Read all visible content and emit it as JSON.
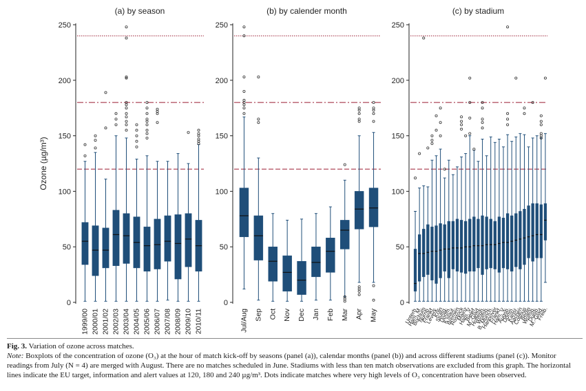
{
  "chart_data": [
    {
      "type": "box",
      "title": "(a) by season",
      "ylabel": "Ozone (µg/m³)",
      "ylim": [
        0,
        250
      ],
      "yticks": [
        0,
        50,
        100,
        150,
        200,
        250
      ],
      "reference_lines": [
        120,
        180,
        240
      ],
      "categories": [
        "1999/00",
        "2000/01",
        "2001/02",
        "2002/03",
        "2003/04",
        "2004/05",
        "2005/06",
        "2006/07",
        "2007/08",
        "2008/09",
        "2009/10",
        "2010/11"
      ],
      "boxes": [
        {
          "min": 1,
          "q1": 34,
          "median": 55,
          "q3": 72,
          "max": 127,
          "outliers": [
            132,
            142
          ]
        },
        {
          "min": 1,
          "q1": 24,
          "median": 47,
          "q3": 69,
          "max": 135,
          "outliers": [
            139,
            146,
            150
          ]
        },
        {
          "min": 1,
          "q1": 31,
          "median": 47,
          "q3": 67,
          "max": 111,
          "outliers": [
            157,
            189
          ]
        },
        {
          "min": 1,
          "q1": 33,
          "median": 61,
          "q3": 83,
          "max": 150,
          "outliers": [
            160,
            165,
            170
          ]
        },
        {
          "min": 1,
          "q1": 35,
          "median": 60,
          "q3": 80,
          "max": 148,
          "outliers": [
            155,
            160,
            163,
            167,
            170,
            175,
            178,
            180,
            202,
            203,
            238,
            248
          ]
        },
        {
          "min": 1,
          "q1": 31,
          "median": 54,
          "q3": 77,
          "max": 129,
          "outliers": [
            140,
            145,
            150,
            155,
            160
          ]
        },
        {
          "min": 1,
          "q1": 28,
          "median": 51,
          "q3": 68,
          "max": 132,
          "outliers": [
            148,
            152,
            155,
            160,
            163,
            165,
            170,
            175,
            180
          ]
        },
        {
          "min": 1,
          "q1": 30,
          "median": 52,
          "q3": 75,
          "max": 127,
          "outliers": [
            162,
            170,
            172,
            174
          ]
        },
        {
          "min": 2,
          "q1": 37,
          "median": 55,
          "q3": 78,
          "max": 127,
          "outliers": []
        },
        {
          "min": 1,
          "q1": 21,
          "median": 53,
          "q3": 79,
          "max": 134,
          "outliers": []
        },
        {
          "min": 1,
          "q1": 32,
          "median": 57,
          "q3": 80,
          "max": 125,
          "outliers": [
            153
          ]
        },
        {
          "min": 1,
          "q1": 28,
          "median": 51,
          "q3": 74,
          "max": 142,
          "outliers": [
            143,
            145,
            147,
            150,
            152,
            155
          ]
        }
      ]
    },
    {
      "type": "box",
      "title": "(b) by calender month",
      "ylim": [
        0,
        250
      ],
      "yticks": [
        0,
        50,
        100,
        150,
        200,
        250
      ],
      "reference_lines": [
        120,
        180,
        240
      ],
      "categories": [
        "Jul/Aug",
        "Sep",
        "Oct",
        "Nov",
        "Dec",
        "Jan",
        "Feb",
        "Mar",
        "Apr",
        "May"
      ],
      "boxes": [
        {
          "min": 12,
          "q1": 59,
          "median": 78,
          "q3": 103,
          "max": 167,
          "outliers": [
            170,
            175,
            178,
            180,
            182,
            190,
            203,
            240,
            248
          ]
        },
        {
          "min": 2,
          "q1": 38,
          "median": 60,
          "q3": 78,
          "max": 130,
          "outliers": [
            162,
            165,
            203
          ]
        },
        {
          "min": 1,
          "q1": 19,
          "median": 37,
          "q3": 50,
          "max": 80,
          "outliers": []
        },
        {
          "min": 1,
          "q1": 10,
          "median": 27,
          "q3": 42,
          "max": 74,
          "outliers": []
        },
        {
          "min": 1,
          "q1": 7,
          "median": 20,
          "q3": 37,
          "max": 75,
          "outliers": []
        },
        {
          "min": 2,
          "q1": 23,
          "median": 36,
          "q3": 50,
          "max": 80,
          "outliers": []
        },
        {
          "min": 2,
          "q1": 27,
          "median": 46,
          "q3": 58,
          "max": 86,
          "outliers": []
        },
        {
          "min": 5,
          "q1": 48,
          "median": 65,
          "q3": 74,
          "max": 110,
          "outliers": [
            1,
            3,
            5,
            124
          ]
        },
        {
          "min": 18,
          "q1": 66,
          "median": 84,
          "q3": 100,
          "max": 150,
          "outliers": [
            7,
            10,
            12,
            14,
            163,
            165,
            170,
            173,
            175
          ]
        },
        {
          "min": 18,
          "q1": 68,
          "median": 85,
          "q3": 103,
          "max": 153,
          "outliers": [
            2,
            15,
            163,
            170,
            173,
            175,
            180
          ]
        }
      ]
    },
    {
      "type": "box",
      "title": "(c) by stadium",
      "ylim": [
        0,
        250
      ],
      "yticks": [
        0,
        50,
        100,
        150,
        200,
        250
      ],
      "reference_lines": [
        120,
        180,
        240
      ],
      "categories": [
        "Unterh.",
        "Ham. M.",
        "Bochum",
        "Nürnb.",
        "Frankf.",
        "Leverk.",
        "Köln",
        "Stuttg.",
        "Dortm.",
        "K'slaut.",
        "Bremen",
        "Rostock",
        "Mainz",
        "Ham. V.",
        "Bielef.",
        "M.-Glad.",
        "Hoffenh.",
        "Wolfsb.",
        "B. Münch.",
        "Hannover",
        "Frankf.",
        "Ham. V.",
        "Augsb.",
        "Dortm.",
        "Karlsr.",
        "Aachen",
        "Cottbus",
        "Berlin",
        "Wolfsb.",
        "Duisb.",
        "M.-Glad.",
        "Freib."
      ],
      "boxes": [
        {
          "min": 1,
          "q1": 10,
          "median": 17,
          "q3": 48,
          "max": 82,
          "outliers": [
            112
          ]
        },
        {
          "min": 1,
          "q1": 19,
          "median": 44,
          "q3": 61,
          "max": 103,
          "outliers": [
            134
          ]
        },
        {
          "min": 1,
          "q1": 23,
          "median": 44,
          "q3": 66,
          "max": 105,
          "outliers": [
            238
          ]
        },
        {
          "min": 1,
          "q1": 25,
          "median": 45,
          "q3": 70,
          "max": 104,
          "outliers": [
            139
          ]
        },
        {
          "min": 1,
          "q1": 20,
          "median": 46,
          "q3": 68,
          "max": 128,
          "outliers": [
            143,
            146,
            150
          ]
        },
        {
          "min": 1,
          "q1": 17,
          "median": 46,
          "q3": 69,
          "max": 132,
          "outliers": [
            155,
            168
          ]
        },
        {
          "min": 1,
          "q1": 22,
          "median": 47,
          "q3": 71,
          "max": 138,
          "outliers": [
            150,
            162,
            175
          ]
        },
        {
          "min": 1,
          "q1": 28,
          "median": 48,
          "q3": 70,
          "max": 112,
          "outliers": [
            120
          ]
        },
        {
          "min": 1,
          "q1": 22,
          "median": 48,
          "q3": 73,
          "max": 128,
          "outliers": []
        },
        {
          "min": 1,
          "q1": 30,
          "median": 49,
          "q3": 73,
          "max": 115,
          "outliers": []
        },
        {
          "min": 1,
          "q1": 28,
          "median": 49,
          "q3": 75,
          "max": 122,
          "outliers": []
        },
        {
          "min": 1,
          "q1": 27,
          "median": 49,
          "q3": 74,
          "max": 131,
          "outliers": [
            156,
            160,
            163,
            167
          ]
        },
        {
          "min": 1,
          "q1": 26,
          "median": 50,
          "q3": 73,
          "max": 134,
          "outliers": [
            150
          ]
        },
        {
          "min": 1,
          "q1": 28,
          "median": 50,
          "q3": 75,
          "max": 150,
          "outliers": [
            152,
            166,
            180,
            202
          ]
        },
        {
          "min": 1,
          "q1": 28,
          "median": 51,
          "q3": 77,
          "max": 137,
          "outliers": [
            138
          ]
        },
        {
          "min": 1,
          "q1": 31,
          "median": 51,
          "q3": 75,
          "max": 127,
          "outliers": []
        },
        {
          "min": 1,
          "q1": 25,
          "median": 51,
          "q3": 78,
          "max": 147,
          "outliers": [
            157,
            162,
            165,
            175,
            180
          ]
        },
        {
          "min": 1,
          "q1": 30,
          "median": 52,
          "q3": 77,
          "max": 132,
          "outliers": []
        },
        {
          "min": 1,
          "q1": 31,
          "median": 52,
          "q3": 75,
          "max": 149,
          "outliers": []
        },
        {
          "min": 1,
          "q1": 30,
          "median": 52,
          "q3": 73,
          "max": 144,
          "outliers": []
        },
        {
          "min": 1,
          "q1": 27,
          "median": 53,
          "q3": 77,
          "max": 147,
          "outliers": []
        },
        {
          "min": 1,
          "q1": 31,
          "median": 54,
          "q3": 76,
          "max": 140,
          "outliers": []
        },
        {
          "min": 1,
          "q1": 30,
          "median": 54,
          "q3": 80,
          "max": 151,
          "outliers": [
            160,
            165,
            170,
            248
          ]
        },
        {
          "min": 1,
          "q1": 28,
          "median": 55,
          "q3": 78,
          "max": 145,
          "outliers": []
        },
        {
          "min": 1,
          "q1": 32,
          "median": 56,
          "q3": 80,
          "max": 149,
          "outliers": [
            202
          ]
        },
        {
          "min": 1,
          "q1": 30,
          "median": 57,
          "q3": 82,
          "max": 152,
          "outliers": []
        },
        {
          "min": 1,
          "q1": 34,
          "median": 58,
          "q3": 84,
          "max": 151,
          "outliers": [
            170,
            175
          ]
        },
        {
          "min": 1,
          "q1": 40,
          "median": 59,
          "q3": 87,
          "max": 140,
          "outliers": []
        },
        {
          "min": 1,
          "q1": 37,
          "median": 60,
          "q3": 89,
          "max": 148,
          "outliers": [
            180
          ]
        },
        {
          "min": 1,
          "q1": 40,
          "median": 61,
          "q3": 89,
          "max": 150,
          "outliers": []
        },
        {
          "min": 1,
          "q1": 40,
          "median": 61,
          "q3": 88,
          "max": 148,
          "outliers": [
            148,
            150,
            152,
            160,
            163,
            168
          ]
        },
        {
          "min": 18,
          "q1": 56,
          "median": 74,
          "q3": 89,
          "max": 152,
          "outliers": [
            202
          ]
        }
      ]
    }
  ],
  "colors": {
    "box_fill": "#1f4e79",
    "median": "#111111",
    "whisker": "#1f4e79",
    "reference_line": "#9b1b30",
    "axis": "#222222"
  },
  "caption": {
    "fig_label": "Fig. 3.",
    "fig_title": "Variation of ozone across matches.",
    "note_label": "Note:",
    "note_text": "Boxplots of the concentration of ozone (O₃) at the hour of match kick-off by seasons (panel (a)), calendar months (panel (b)) and across different stadiums (panel (c)). Monitor readings from July (N = 4) are merged with August. There are no matches scheduled in June. Stadiums with less than ten match observations are excluded from this graph. The horizontal lines indicate the EU target, information and alert values at 120, 180 and 240 µg/m³. Dots indicate matches where very high levels of O₃ concentration have been observed."
  }
}
